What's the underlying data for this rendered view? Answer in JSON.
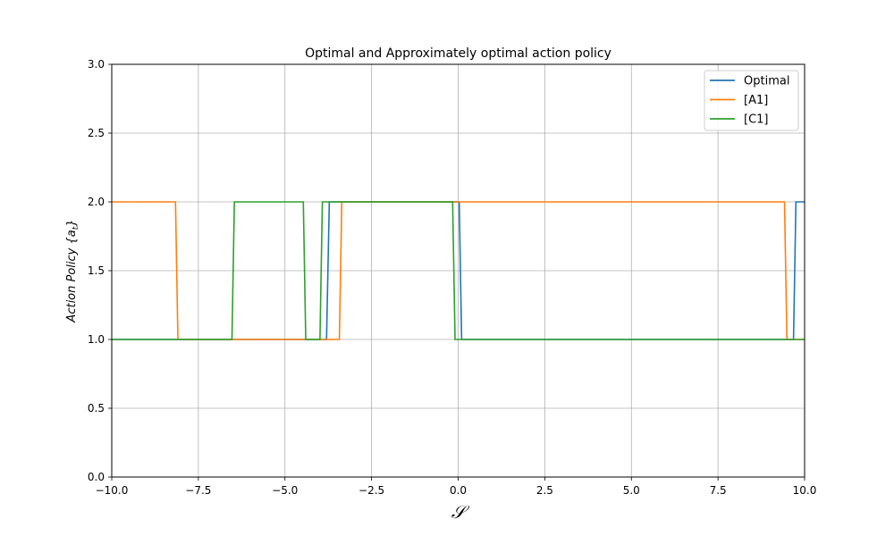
{
  "chart_data": {
    "type": "line",
    "title": "Optimal and Approximately optimal action policy",
    "xlabel": "𝒮",
    "ylabel": "Action Policy {a",
    "ylabel_sub": "t",
    "ylabel_close": "}",
    "xlim": [
      -10,
      10
    ],
    "ylim": [
      0,
      3
    ],
    "x_ticks": [
      -10,
      -7.5,
      -5,
      -2.5,
      0,
      2.5,
      5,
      7.5,
      10
    ],
    "x_tick_labels": [
      "−10.0",
      "−7.5",
      "−5.0",
      "−2.5",
      "0.0",
      "2.5",
      "5.0",
      "7.5",
      "10.0"
    ],
    "y_ticks": [
      0,
      0.5,
      1,
      1.5,
      2,
      2.5,
      3
    ],
    "y_tick_labels": [
      "0.0",
      "0.5",
      "1.0",
      "1.5",
      "2.0",
      "2.5",
      "3.0"
    ],
    "grid": true,
    "legend_position": "top-right",
    "series": [
      {
        "name": "Optimal",
        "color": "#1f77b4",
        "x": [
          -10,
          -3.8,
          -3.72,
          0.03,
          0.1,
          9.68,
          9.75,
          10
        ],
        "y": [
          1,
          1,
          2,
          2,
          1,
          1,
          2,
          2
        ]
      },
      {
        "name": "[A1]",
        "color": "#ff7f0e",
        "x": [
          -10,
          -8.16,
          -8.09,
          -3.43,
          -3.36,
          9.42,
          9.49,
          10
        ],
        "y": [
          2,
          2,
          1,
          1,
          2,
          2,
          1,
          1
        ]
      },
      {
        "name": "[C1]",
        "color": "#2ca02c",
        "x": [
          -10,
          -6.53,
          -6.46,
          -4.47,
          -4.4,
          -3.99,
          -3.92,
          -0.16,
          -0.09,
          10
        ],
        "y": [
          1,
          1,
          2,
          2,
          1,
          1,
          2,
          2,
          1,
          1
        ]
      }
    ]
  }
}
